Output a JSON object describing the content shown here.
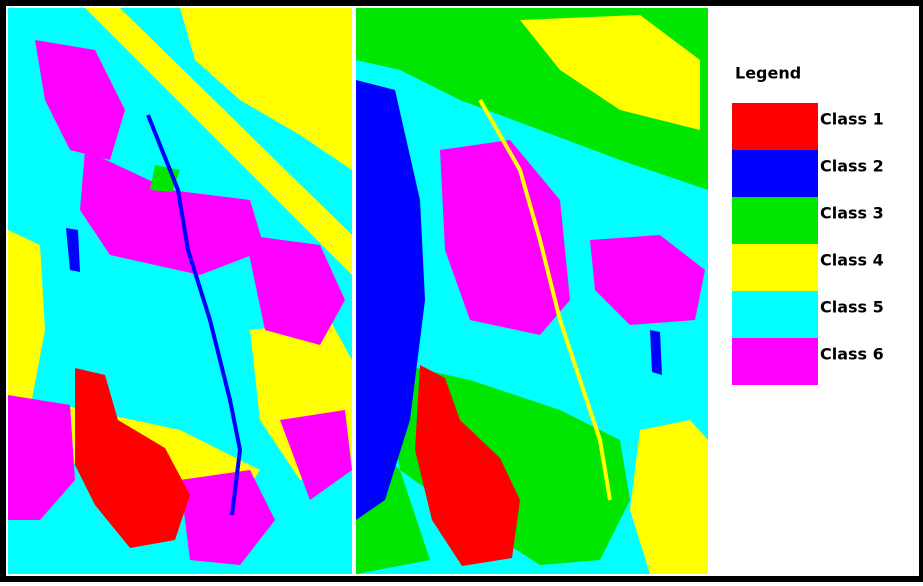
{
  "legend": {
    "title": "Legend",
    "items": [
      {
        "label": "Class 1",
        "color": "#ff0000"
      },
      {
        "label": "Class 2",
        "color": "#0000ff"
      },
      {
        "label": "Class 3",
        "color": "#00e600"
      },
      {
        "label": "Class 4",
        "color": "#ffff00"
      },
      {
        "label": "Class 5",
        "color": "#00ffff"
      },
      {
        "label": "Class 6",
        "color": "#ff00ff"
      }
    ]
  }
}
